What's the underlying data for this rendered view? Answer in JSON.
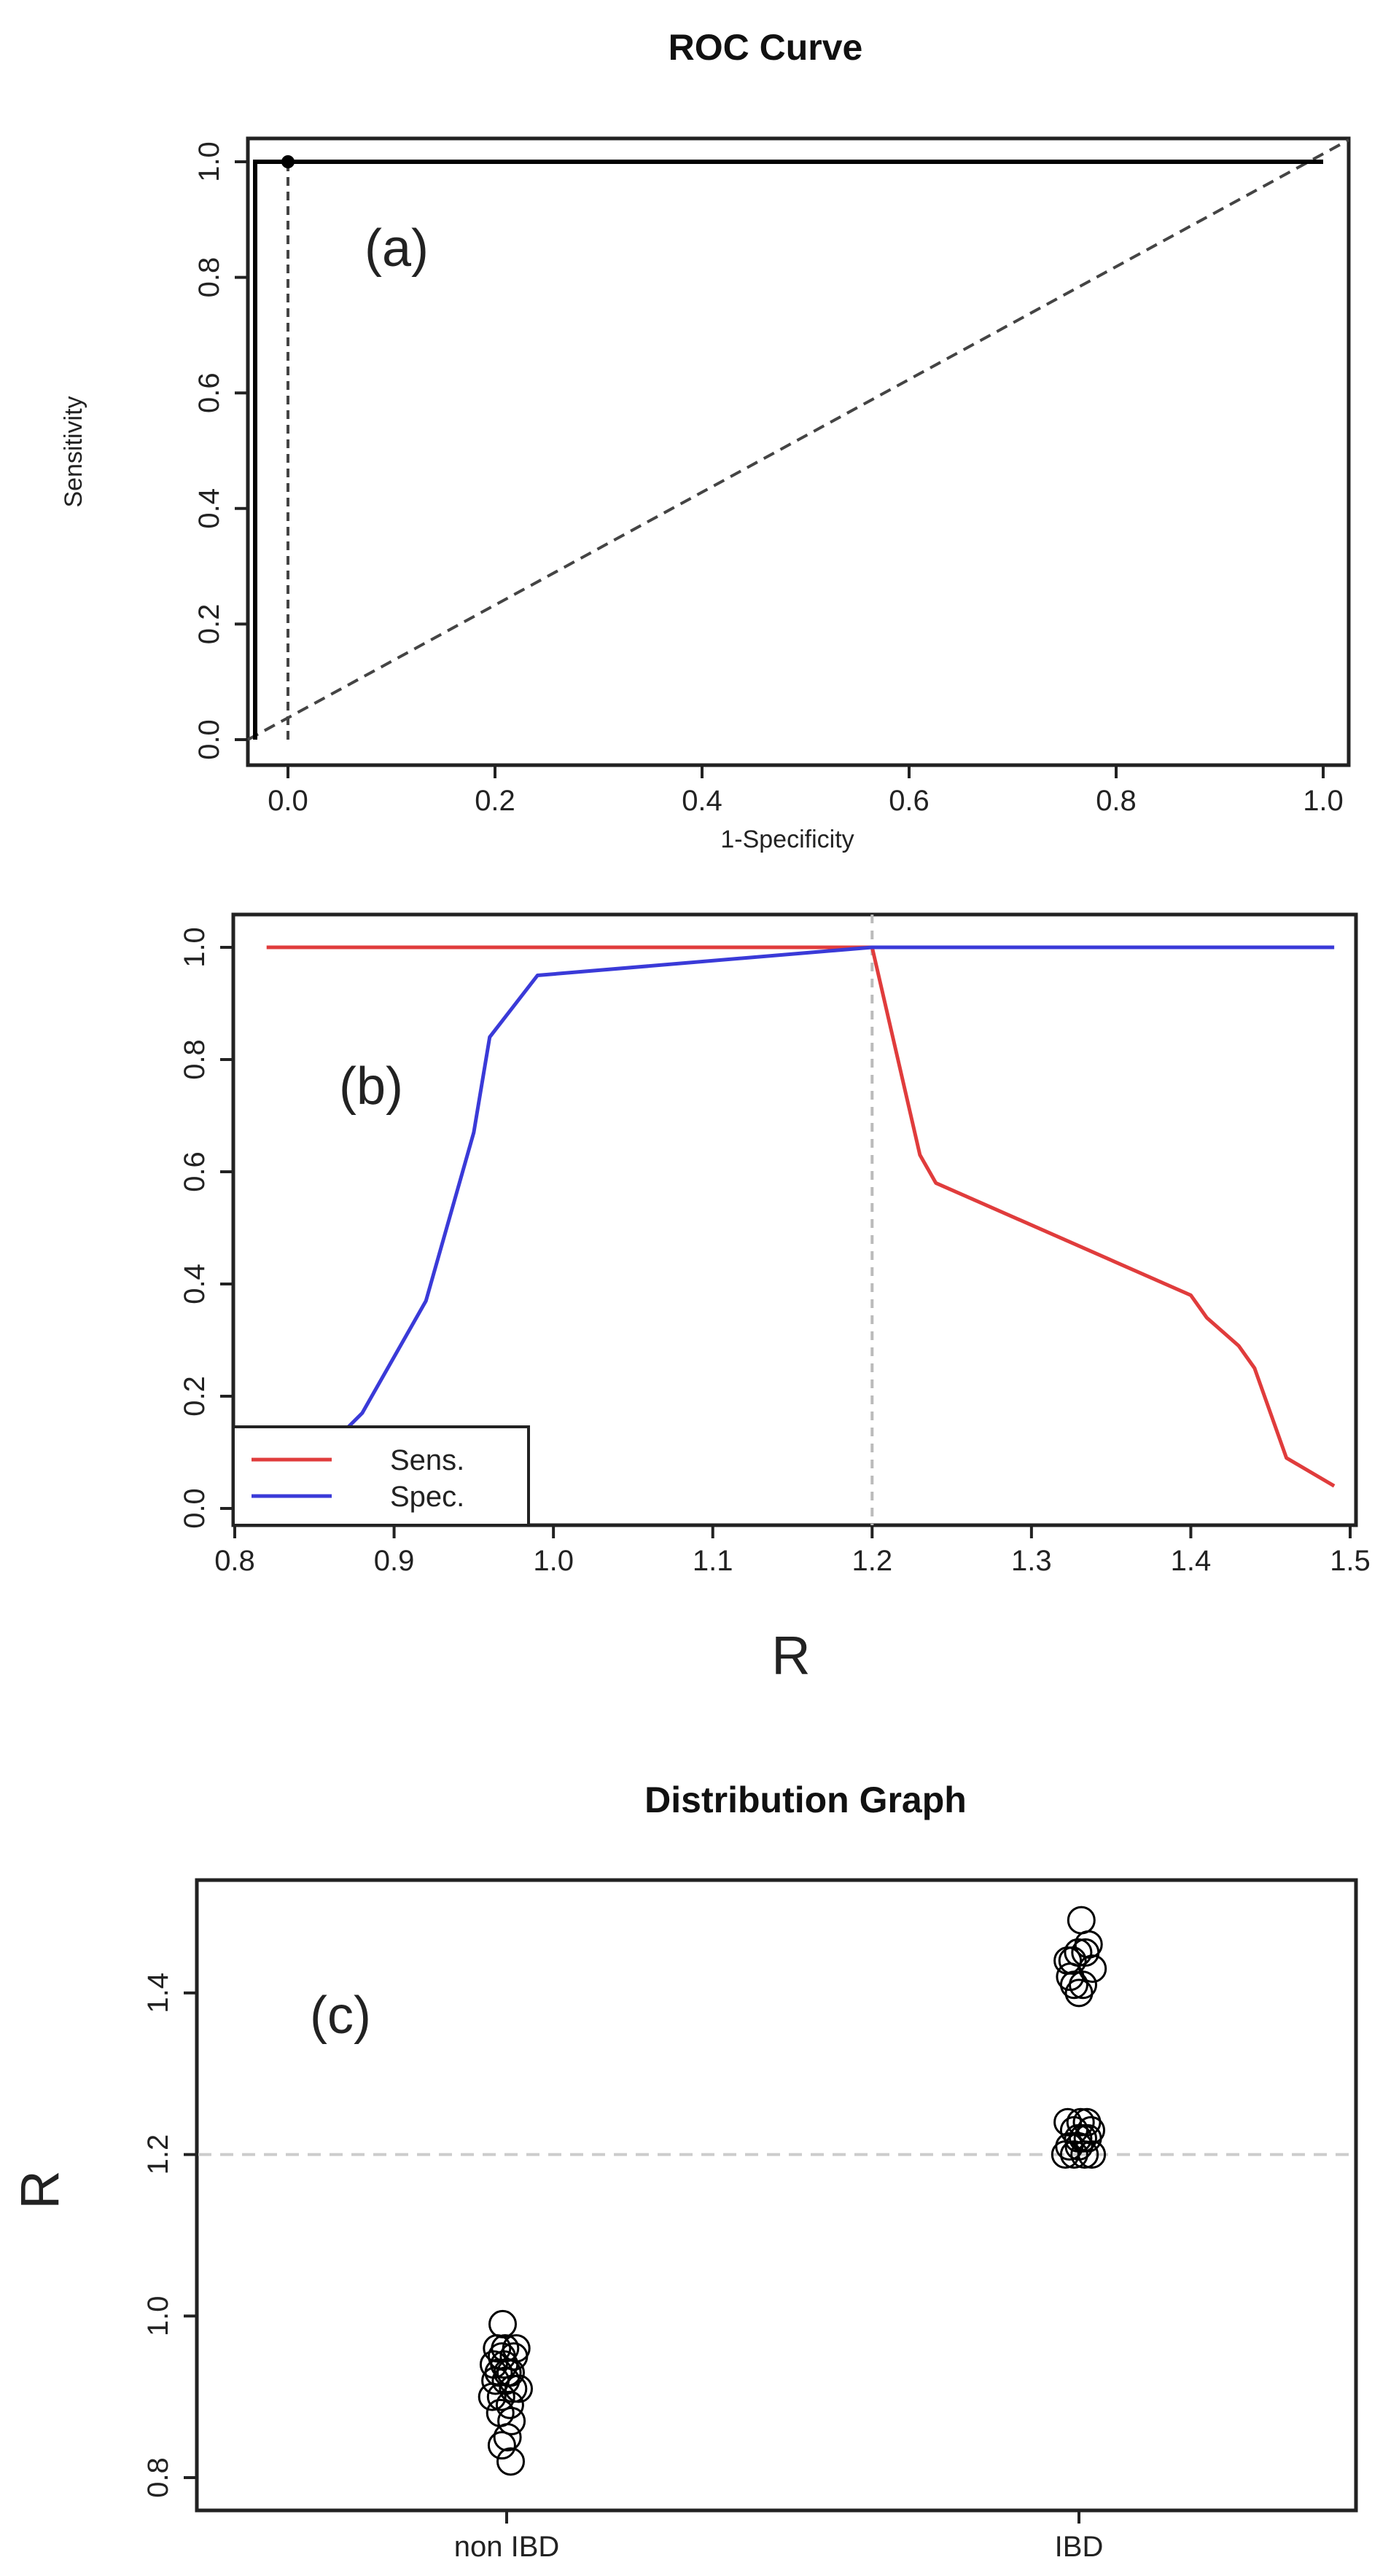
{
  "chart_data": [
    {
      "type": "line",
      "title": "ROC Curve",
      "panel_label": "(a)",
      "xlabel": "1-Specificity",
      "ylabel": "Sensitivity",
      "xlim": [
        0,
        1
      ],
      "ylim": [
        0,
        1
      ],
      "x_ticks": [
        "0.0",
        "0.2",
        "0.4",
        "0.6",
        "0.8",
        "1.0"
      ],
      "y_ticks": [
        "0.0",
        "0.2",
        "0.4",
        "0.6",
        "0.8",
        "1.0"
      ],
      "series": [
        {
          "x": [
            0,
            0,
            1
          ],
          "y": [
            0,
            1,
            1
          ],
          "style": "solid"
        }
      ],
      "reference_line": {
        "x": [
          0,
          1
        ],
        "y": [
          0,
          1
        ],
        "style": "dashed"
      },
      "cutoff_point": {
        "x": 0,
        "y": 1
      },
      "cutoff_drop_line": {
        "x": [
          0,
          0
        ],
        "y": [
          0,
          1
        ],
        "style": "dashed"
      },
      "grid": false,
      "color": "#000000"
    },
    {
      "type": "line",
      "title": "",
      "panel_label": "(b)",
      "xlabel": "R",
      "ylabel": "",
      "xlim": [
        0.8,
        1.5
      ],
      "ylim": [
        0,
        1
      ],
      "x_ticks": [
        "0.8",
        "0.9",
        "1.0",
        "1.1",
        "1.2",
        "1.3",
        "1.4",
        "1.5"
      ],
      "y_ticks": [
        "0.0",
        "0.2",
        "0.4",
        "0.6",
        "0.8",
        "1.0"
      ],
      "series": [
        {
          "name": "Sens.",
          "color": "#e03c3c",
          "x": [
            0.82,
            1.2,
            1.23,
            1.24,
            1.4,
            1.41,
            1.43,
            1.44,
            1.46,
            1.49
          ],
          "y": [
            1.0,
            1.0,
            0.63,
            0.58,
            0.38,
            0.34,
            0.29,
            0.25,
            0.09,
            0.04
          ]
        },
        {
          "name": "Spec.",
          "color": "#3a3ad8",
          "x": [
            0.82,
            0.88,
            0.92,
            0.95,
            0.96,
            0.99,
            1.2,
            1.49
          ],
          "y": [
            0.0,
            0.17,
            0.37,
            0.67,
            0.84,
            0.95,
            1.0,
            1.0
          ]
        }
      ],
      "vertical_line": {
        "x": 1.2,
        "style": "dotted",
        "color": "#bbbbbb"
      },
      "legend_position": "bottom-left",
      "grid": false
    },
    {
      "type": "scatter",
      "title": "Distribution Graph",
      "panel_label": "(c)",
      "xlabel": "",
      "ylabel": "R",
      "categories": [
        "non IBD",
        "IBD"
      ],
      "ylim": [
        0.8,
        1.5
      ],
      "y_ticks": [
        "0.8",
        "1.0",
        "1.2",
        "1.4"
      ],
      "threshold": {
        "y": 1.2,
        "style": "dashed",
        "color": "#cccccc"
      },
      "series": [
        {
          "category": "non IBD",
          "values": [
            0.99,
            0.96,
            0.96,
            0.96,
            0.95,
            0.95,
            0.94,
            0.94,
            0.93,
            0.93,
            0.93,
            0.92,
            0.92,
            0.91,
            0.91,
            0.9,
            0.9,
            0.89,
            0.88,
            0.87,
            0.85,
            0.84,
            0.82
          ],
          "jitter": [
            -0.05,
            -0.12,
            -0.02,
            0.12,
            -0.06,
            0.09,
            -0.03,
            -0.16,
            -0.1,
            0.01,
            0.05,
            -0.14,
            -0.01,
            0.08,
            0.15,
            -0.07,
            -0.18,
            0.04,
            -0.08,
            0.06,
            0.01,
            -0.06,
            0.05
          ]
        },
        {
          "category": "IBD",
          "values": [
            1.49,
            1.46,
            1.45,
            1.45,
            1.44,
            1.44,
            1.43,
            1.42,
            1.41,
            1.41,
            1.4,
            1.24,
            1.24,
            1.24,
            1.23,
            1.23,
            1.22,
            1.22,
            1.22,
            1.21,
            1.21,
            1.2,
            1.2,
            1.2,
            1.2
          ],
          "jitter": [
            0.03,
            0.12,
            -0.01,
            0.08,
            -0.14,
            -0.08,
            0.17,
            -0.11,
            -0.06,
            0.05,
            0.0,
            -0.14,
            0.02,
            0.1,
            -0.06,
            0.15,
            -0.01,
            0.05,
            0.11,
            -0.12,
            0.0,
            -0.17,
            -0.06,
            0.07,
            0.16
          ]
        }
      ],
      "grid": false,
      "color": "#000000"
    }
  ]
}
